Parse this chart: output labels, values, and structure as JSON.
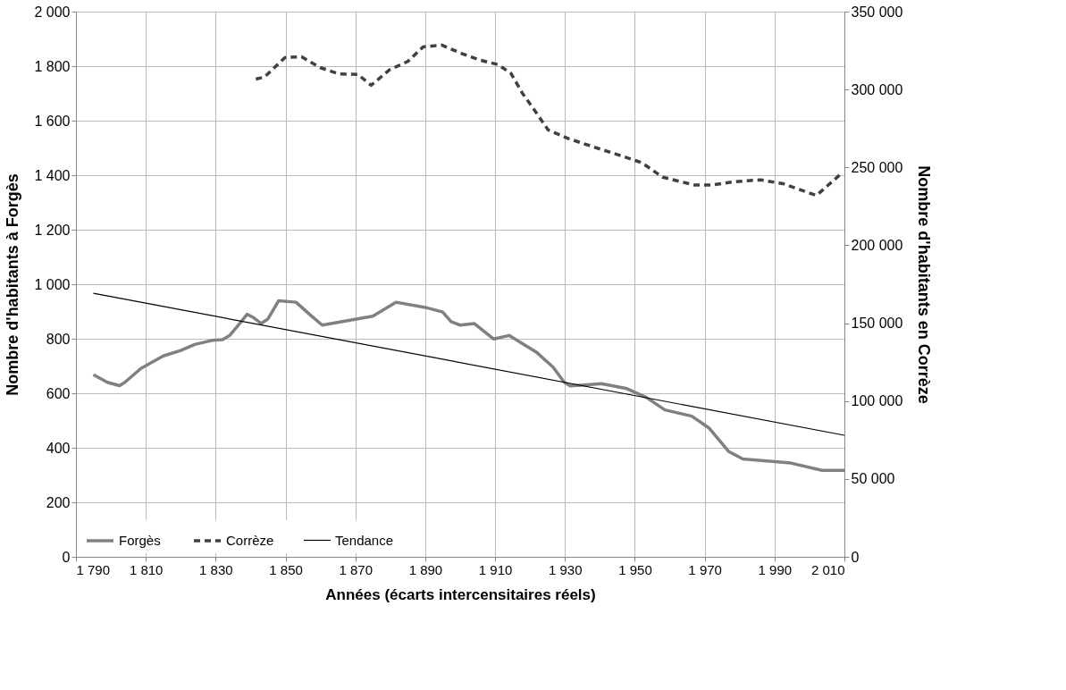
{
  "chart_data": {
    "type": "line",
    "xlabel": "Années (écarts intercensitaires réels)",
    "ylabel": "Nombre d'habitants à Forgès",
    "y2label": "Nombre d'habitants en Corrèze",
    "xlim": [
      1790,
      2010
    ],
    "xticks": [
      {
        "value": 1790,
        "label": "1 790"
      },
      {
        "value": 1810,
        "label": "1 810"
      },
      {
        "value": 1830,
        "label": "1 830"
      },
      {
        "value": 1850,
        "label": "1 850"
      },
      {
        "value": 1870,
        "label": "1 870"
      },
      {
        "value": 1890,
        "label": "1 890"
      },
      {
        "value": 1910,
        "label": "1 910"
      },
      {
        "value": 1930,
        "label": "1 930"
      },
      {
        "value": 1950,
        "label": "1 950"
      },
      {
        "value": 1970,
        "label": "1 970"
      },
      {
        "value": 1990,
        "label": "1 990"
      },
      {
        "value": 2010,
        "label": "2 010"
      }
    ],
    "ylim": [
      0,
      2000
    ],
    "yticks": [
      0,
      200,
      400,
      600,
      800,
      {
        "value": 1000,
        "label": "1 000"
      },
      {
        "value": 1200,
        "label": "1 200"
      },
      {
        "value": 1400,
        "label": "1 400"
      },
      {
        "value": 1600,
        "label": "1 600"
      },
      {
        "value": 1800,
        "label": "1 800"
      },
      {
        "value": 2000,
        "label": "2 000"
      }
    ],
    "y2lim": [
      0,
      350000
    ],
    "y2ticks": [
      0,
      {
        "value": 50000,
        "label": "50 000"
      },
      {
        "value": 100000,
        "label": "100 000"
      },
      {
        "value": 150000,
        "label": "150 000"
      },
      {
        "value": 200000,
        "label": "200 000"
      },
      {
        "value": 250000,
        "label": "250 000"
      },
      {
        "value": 300000,
        "label": "300 000"
      },
      {
        "value": 350000,
        "label": "350 000"
      }
    ],
    "grid": true,
    "legend": "bottom left",
    "marker": "none",
    "series": [
      {
        "name": "Forgès",
        "color": "#808080",
        "line_style": "solid",
        "x": [
          1795,
          1799,
          1802.5,
          1804,
          1808.6,
          1815,
          1820,
          1824,
          1829,
          1832,
          1834,
          1837,
          1839,
          1841,
          1843,
          1845,
          1848,
          1853,
          1857,
          1860.5,
          1875,
          1881.6,
          1890,
          1895,
          1897.4,
          1900,
          1904,
          1909.6,
          1914,
          1921.7,
          1926.6,
          1929.8,
          1931.5,
          1935.5,
          1940.4,
          1947.7,
          1953.3,
          1958.6,
          1966.3,
          1971.2,
          1976.8,
          1980.9,
          1994.7,
          2003.6,
          2010
        ],
        "values": [
          668,
          640,
          628,
          640,
          691,
          737,
          757,
          779,
          794,
          797,
          812,
          858,
          890,
          876,
          856,
          873,
          939,
          934,
          888,
          850,
          883,
          934,
          915,
          898,
          863,
          850,
          856,
          799,
          812,
          752,
          696,
          640,
          627,
          630,
          635,
          617,
          585,
          539,
          516,
          473,
          387,
          359,
          344,
          317,
          317
        ]
      },
      {
        "name": "Corrèze",
        "color": "#404040",
        "line_style": "dashed",
        "axis": "y2",
        "x": [
          1841.5,
          1844,
          1849.8,
          1854.6,
          1860,
          1865.3,
          1870.7,
          1874.5,
          1879.8,
          1885,
          1889.4,
          1894.7,
          1900.6,
          1905.5,
          1910.8,
          1914.5,
          1917.8,
          1921.5,
          1925.2,
          1931,
          1938,
          1946,
          1952,
          1958,
          1967,
          1972,
          1979,
          1986,
          1992.5,
          2002,
          2008.6
        ],
        "values": [
          306700,
          308000,
          320500,
          321000,
          314000,
          310000,
          309700,
          302700,
          312700,
          318000,
          327400,
          328500,
          323000,
          319000,
          316000,
          310500,
          297700,
          286000,
          274000,
          268500,
          263300,
          257500,
          253000,
          243700,
          238700,
          238700,
          240900,
          242000,
          239500,
          232000,
          245000
        ]
      },
      {
        "name": "Tendance",
        "color": "#000000",
        "line_style": "solid",
        "x": [
          1795,
          2010
        ],
        "values": [
          967,
          446
        ]
      }
    ]
  }
}
